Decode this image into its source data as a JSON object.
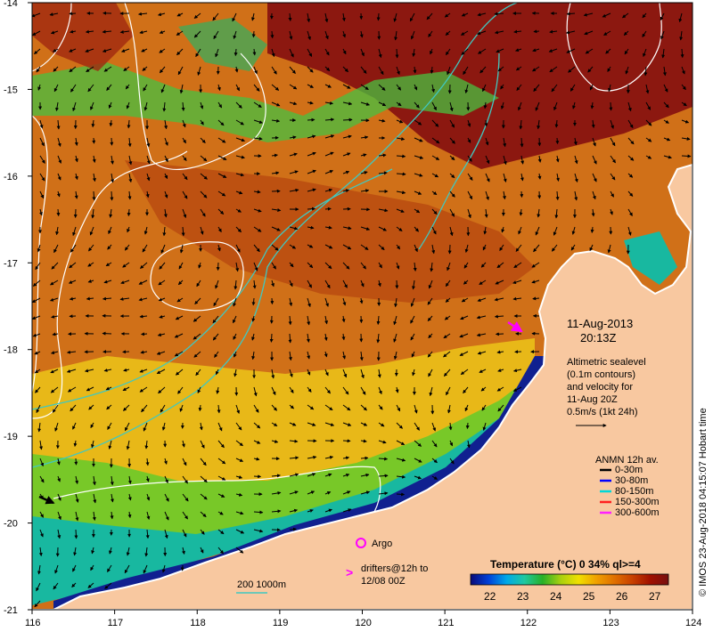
{
  "map": {
    "date_label": "11-Aug-2013",
    "time_label": "20:13Z",
    "info_lines": [
      "Altimetric sealevel",
      "(0.1m contours)",
      "and velocity for",
      "11-Aug 20Z",
      "0.5m/s (1kt 24h)"
    ],
    "lon_ticks": [
      "116",
      "117",
      "118",
      "119",
      "120",
      "121",
      "122",
      "123",
      "124"
    ],
    "lat_ticks": [
      "-14",
      "-15",
      "-16",
      "-17",
      "-18",
      "-19",
      "-20",
      "-21"
    ],
    "credit": "© IMOS 23-Aug-2018 04:15:07 Hobart time",
    "argo_label": "Argo",
    "drifters_line1": "drifters@12h to",
    "drifters_line2": "12/08 00Z",
    "depth_label": "200  1000m"
  },
  "legend": {
    "title": "ANMN 12h av.",
    "items": [
      {
        "label": "0-30m",
        "color": "#000000"
      },
      {
        "label": "30-80m",
        "color": "#0000ff"
      },
      {
        "label": "80-150m",
        "color": "#00d8d8"
      },
      {
        "label": "150-300m",
        "color": "#ff2020"
      },
      {
        "label": "300-600m",
        "color": "#ff20ff"
      }
    ]
  },
  "colorbar": {
    "title": "Temperature (°C) 0 34% ql>=4",
    "ticks": [
      "22",
      "23",
      "24",
      "25",
      "26",
      "27"
    ],
    "colors": [
      "#0a0a78",
      "#0040d8",
      "#00a8e8",
      "#20c8a0",
      "#28b028",
      "#a8d010",
      "#f0e000",
      "#f0a000",
      "#e07000",
      "#c84000",
      "#a01000",
      "#781010"
    ]
  },
  "colors": {
    "land": "#f8c8a0",
    "warm": "#c85a10",
    "hot": "#8c1810",
    "mid": "#e8a018",
    "cool": "#a8d020",
    "cold": "#18b8a0",
    "deep": "#102090",
    "contour": "#ffffff",
    "isobath": "#40c8c0"
  }
}
